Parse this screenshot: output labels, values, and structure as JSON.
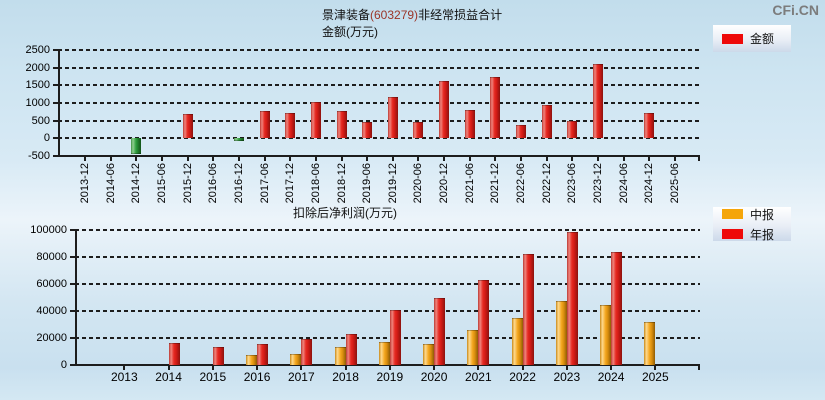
{
  "watermark": "CFi.CN",
  "header": {
    "stock": "景津装备",
    "code": "(603279)",
    "metric": "非经常损益合计",
    "unit_line": "金额(万元)"
  },
  "colors": {
    "legend_amount": "#ee0909",
    "legend_interim": "#f5a50a",
    "legend_annual": "#ee0909",
    "bar_positive": "#e62a22",
    "bar_negative": "#2f9e3f",
    "bar_interim": "#f4a71f",
    "code_text": "#9b3528",
    "watermark_text": "#7c7c7c"
  },
  "chart_data": [
    {
      "type": "bar",
      "title": "景津装备(603279)非经常损益合计",
      "subtitle": "金额(万元)",
      "ylabel": "金额(万元)",
      "ylim": [
        -500,
        2500
      ],
      "yticks": [
        2500,
        2000,
        1500,
        1000,
        500,
        0,
        -500
      ],
      "grid": "dashed-horizontal",
      "legend_position": "top-right",
      "legend": [
        {
          "label": "金额",
          "color": "#ee0909"
        }
      ],
      "categories": [
        "2013-12",
        "2014-06",
        "2014-12",
        "2015-06",
        "2015-12",
        "2016-06",
        "2016-12",
        "2017-06",
        "2017-12",
        "2018-06",
        "2018-12",
        "2019-06",
        "2019-12",
        "2020-06",
        "2020-12",
        "2021-06",
        "2021-12",
        "2022-06",
        "2022-12",
        "2023-06",
        "2023-12",
        "2024-06",
        "2024-12",
        "2025-06"
      ],
      "values": [
        null,
        null,
        -430,
        null,
        680,
        null,
        -70,
        770,
        710,
        1040,
        770,
        470,
        1180,
        450,
        1620,
        790,
        1750,
        370,
        940,
        500,
        2100,
        null,
        730,
        null
      ]
    },
    {
      "type": "bar",
      "title": "扣除后净利润(万元)",
      "ylim": [
        0,
        100000
      ],
      "yticks": [
        100000,
        80000,
        60000,
        40000,
        20000,
        0
      ],
      "grid": "dashed-horizontal",
      "legend_position": "top-right",
      "categories": [
        "2013",
        "2014",
        "2015",
        "2016",
        "2017",
        "2018",
        "2019",
        "2020",
        "2021",
        "2022",
        "2023",
        "2024",
        "2025"
      ],
      "series": [
        {
          "name": "中报",
          "color": "#f5a50a",
          "values": [
            null,
            null,
            null,
            7700,
            8500,
            13400,
            16700,
            15600,
            26000,
            34700,
            47600,
            44400,
            31500
          ]
        },
        {
          "name": "年报",
          "color": "#ee0909",
          "values": [
            null,
            16400,
            13400,
            15200,
            19600,
            23300,
            40400,
            49400,
            63000,
            82500,
            98700,
            84000,
            null
          ]
        }
      ]
    }
  ]
}
